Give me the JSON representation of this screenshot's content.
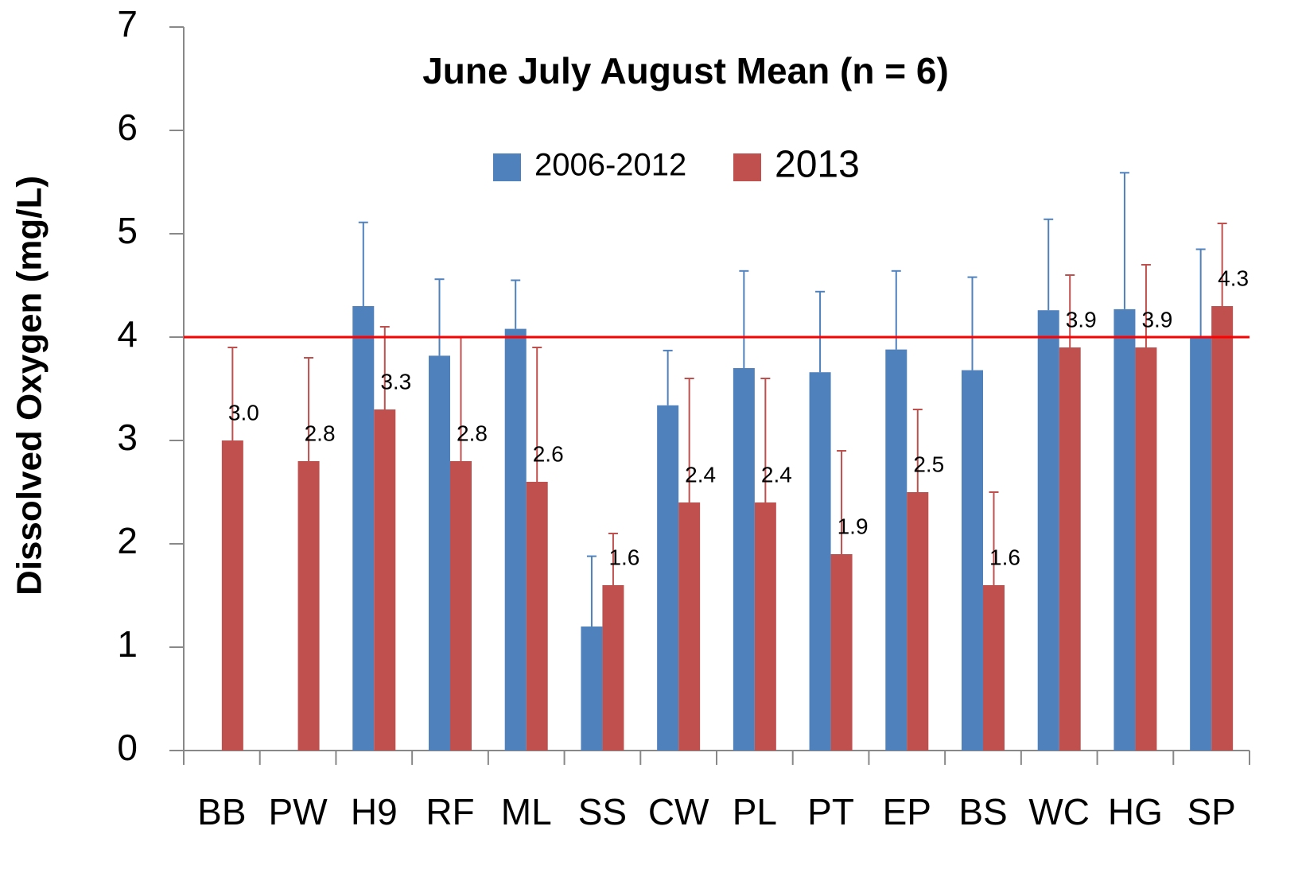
{
  "chart_data": {
    "type": "bar",
    "title": "June July August  Mean (n = 6)",
    "y_label": "Dissolved Oxygen (mg/L)",
    "categories": [
      "BB",
      "PW",
      "H9",
      "RF",
      "ML",
      "SS",
      "CW",
      "PL",
      "PT",
      "EP",
      "BS",
      "WC",
      "HG",
      "SP"
    ],
    "series": [
      {
        "name": "2006-2012",
        "color": "#4f81bd",
        "values": [
          null,
          null,
          4.3,
          3.82,
          4.08,
          1.2,
          3.34,
          3.7,
          3.66,
          3.88,
          3.68,
          4.26,
          4.27,
          4.0
        ],
        "errors": [
          null,
          null,
          0.81,
          0.74,
          0.47,
          0.68,
          0.53,
          0.94,
          0.78,
          0.76,
          0.9,
          0.88,
          1.32,
          0.85
        ]
      },
      {
        "name": "2013",
        "color": "#c0504d",
        "values": [
          3.0,
          2.8,
          3.3,
          2.8,
          2.6,
          1.6,
          2.4,
          2.4,
          1.9,
          2.5,
          1.6,
          3.9,
          3.9,
          4.3
        ],
        "value_labels": [
          "3.0",
          "2.8",
          "3.3",
          "2.8",
          "2.6",
          "1.6",
          "2.4",
          "2.4",
          "1.9",
          "2.5",
          "1.6",
          "3.9",
          "3.9",
          "4.3"
        ],
        "errors": [
          0.9,
          1.0,
          0.8,
          1.2,
          1.3,
          0.5,
          1.2,
          1.2,
          1.0,
          0.8,
          0.9,
          0.7,
          0.8,
          0.8
        ]
      }
    ],
    "reference_line": {
      "value": 4,
      "color": "#ff0000"
    },
    "ylim": [
      0,
      7
    ],
    "yticks": [
      0,
      1,
      2,
      3,
      4,
      5,
      6,
      7
    ],
    "grid": false
  }
}
